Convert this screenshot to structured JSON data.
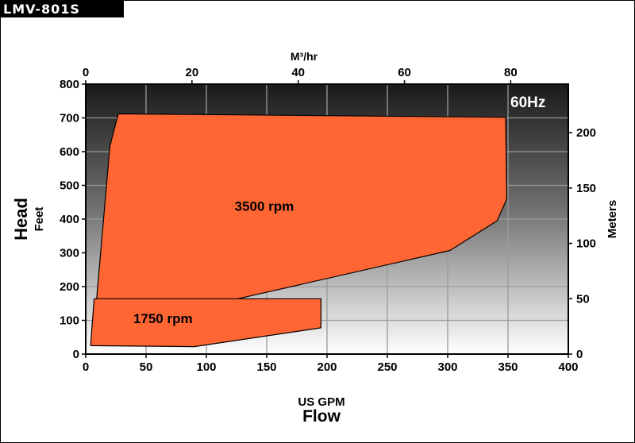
{
  "model": "LMV-801S",
  "chart_data": {
    "type": "area",
    "badge": "60Hz",
    "xlabel": "US GPM",
    "xlabel_title": "Flow",
    "ylabel": "Feet",
    "ylabel_title": "Head",
    "y2label": "Meters",
    "x2label": "M³/hr",
    "xlim": [
      0,
      400
    ],
    "ylim": [
      0,
      800
    ],
    "xticks": [
      0,
      50,
      100,
      150,
      200,
      250,
      300,
      350,
      400
    ],
    "yticks": [
      0,
      100,
      200,
      300,
      400,
      500,
      600,
      700,
      800
    ],
    "x2ticks": [
      0,
      20,
      40,
      60,
      80
    ],
    "y2ticks": [
      0,
      50,
      100,
      150,
      200
    ],
    "grid": true,
    "series": [
      {
        "name": "3500 rpm",
        "color": "#ff6633",
        "polygon": [
          [
            27,
            712
          ],
          [
            348,
            702
          ],
          [
            349,
            460
          ],
          [
            341,
            395
          ],
          [
            302,
            307
          ],
          [
            125,
            163
          ],
          [
            9,
            163
          ],
          [
            20,
            615
          ]
        ]
      },
      {
        "name": "1750 rpm",
        "color": "#ff6633",
        "polygon": [
          [
            7,
            164
          ],
          [
            195,
            164
          ],
          [
            195,
            78
          ],
          [
            90,
            22
          ],
          [
            4,
            25
          ]
        ]
      }
    ]
  }
}
